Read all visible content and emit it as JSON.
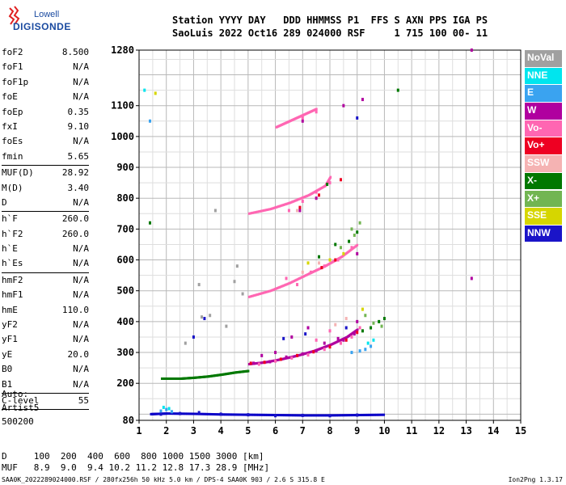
{
  "logo": {
    "line1": "Lowell",
    "line2": "DIGISONDE"
  },
  "header": {
    "line1": "Station YYYY DAY   DDD HHMMSS P1  FFS S AXN PPS IGA PS",
    "line2": "SaoLuis 2022 Oct16 289 024000 RSF     1 715 100 00- 11"
  },
  "params": [
    {
      "name": "foF2",
      "value": "8.500"
    },
    {
      "name": "foF1",
      "value": "N/A"
    },
    {
      "name": "foF1p",
      "value": "N/A"
    },
    {
      "name": "foE",
      "value": "N/A"
    },
    {
      "name": "foEp",
      "value": "0.35"
    },
    {
      "name": "fxI",
      "value": "9.10"
    },
    {
      "name": "foEs",
      "value": "N/A"
    },
    {
      "name": "fmin",
      "value": "5.65",
      "sep": true
    },
    {
      "name": "MUF(D)",
      "value": "28.92"
    },
    {
      "name": "M(D)",
      "value": "3.40"
    },
    {
      "name": "D",
      "value": "N/A",
      "sep": true
    },
    {
      "name": "h`F",
      "value": "260.0"
    },
    {
      "name": "h`F2",
      "value": "260.0"
    },
    {
      "name": "h`E",
      "value": "N/A"
    },
    {
      "name": "h`Es",
      "value": "N/A",
      "sep": true
    },
    {
      "name": "hmF2",
      "value": "N/A"
    },
    {
      "name": "hmF1",
      "value": "N/A"
    },
    {
      "name": "hmE",
      "value": "110.0"
    },
    {
      "name": "yF2",
      "value": "N/A"
    },
    {
      "name": "yF1",
      "value": "N/A"
    },
    {
      "name": "yE",
      "value": "20.0"
    },
    {
      "name": "B0",
      "value": "N/A"
    },
    {
      "name": "B1",
      "value": "N/A",
      "sep": true
    },
    {
      "name": "C-level",
      "value": "55",
      "sep": true
    }
  ],
  "auto": {
    "line1": "Auto:",
    "line2": "Artist5",
    "line3": "500200"
  },
  "legend": [
    {
      "label": "NoVal",
      "color": "#a0a0a0"
    },
    {
      "label": "NNE",
      "color": "#00e5ee"
    },
    {
      "label": "E",
      "color": "#3aa3f0"
    },
    {
      "label": "W",
      "color": "#b0009f"
    },
    {
      "label": "Vo-",
      "color": "#ff66b2"
    },
    {
      "label": "Vo+",
      "color": "#ee0022"
    },
    {
      "label": "SSW",
      "color": "#f5b3b3"
    },
    {
      "label": "X-",
      "color": "#007800"
    },
    {
      "label": "X+",
      "color": "#72b552"
    },
    {
      "label": "SSE",
      "color": "#d6d600"
    },
    {
      "label": "NNW",
      "color": "#1a14c8"
    }
  ],
  "muf_table": {
    "line1": "D     100  200  400  600  800 1000 1500 3000 [km]",
    "line2": "MUF   8.9  9.0  9.4 10.2 11.2 12.8 17.3 28.9 [MHz]"
  },
  "footer": "SAA0K_2022289024000.RSF / 280fx256h 50 kHz 5.0 km / DPS-4 SAA0K 903 / 2.6 S 315.8 E",
  "version": "Ion2Png 1.3.17",
  "chart_data": {
    "type": "scatter",
    "title": "",
    "xlabel": "",
    "ylabel": "",
    "xlim": [
      1,
      15
    ],
    "ylim": [
      80,
      1280
    ],
    "x_ticks": [
      1,
      2,
      3,
      4,
      5,
      6,
      7,
      8,
      9,
      10,
      11,
      12,
      13,
      14,
      15
    ],
    "y_ticks": [
      80,
      200,
      300,
      400,
      500,
      600,
      700,
      800,
      900,
      1000,
      1100,
      1280
    ],
    "grid": true,
    "series": [
      {
        "name": "W",
        "color": "#b0009f",
        "points": [
          [
            5.2,
            265
          ],
          [
            5.8,
            270
          ],
          [
            6.4,
            285
          ],
          [
            7.0,
            295
          ],
          [
            7.5,
            305
          ],
          [
            8.0,
            320
          ],
          [
            8.5,
            340
          ],
          [
            8.9,
            360
          ],
          [
            6.6,
            350
          ],
          [
            7.2,
            380
          ],
          [
            6.0,
            300
          ],
          [
            9.0,
            400
          ],
          [
            7.8,
            330
          ],
          [
            8.3,
            345
          ],
          [
            5.5,
            290
          ],
          [
            6.9,
            760
          ],
          [
            7.5,
            800
          ],
          [
            9.0,
            620
          ],
          [
            7.0,
            1050
          ],
          [
            8.5,
            1100
          ],
          [
            9.2,
            1120
          ],
          [
            13.2,
            540
          ],
          [
            13.2,
            1280
          ]
        ]
      },
      {
        "name": "Vo-",
        "color": "#ff66b2",
        "points": [
          [
            5.4,
            262
          ],
          [
            6.0,
            272
          ],
          [
            6.6,
            282
          ],
          [
            7.2,
            292
          ],
          [
            7.8,
            310
          ],
          [
            8.4,
            330
          ],
          [
            8.8,
            350
          ],
          [
            9.1,
            380
          ],
          [
            7.5,
            340
          ],
          [
            8.0,
            370
          ],
          [
            6.8,
            520
          ],
          [
            7.3,
            560
          ],
          [
            7.8,
            580
          ],
          [
            8.3,
            600
          ],
          [
            8.8,
            640
          ],
          [
            6.5,
            760
          ],
          [
            7.0,
            790
          ],
          [
            7.5,
            820
          ],
          [
            8.0,
            850
          ],
          [
            7.0,
            1060
          ],
          [
            7.5,
            1080
          ],
          [
            6.4,
            540
          ]
        ]
      },
      {
        "name": "Vo+",
        "color": "#ee0022",
        "points": [
          [
            5.6,
            268
          ],
          [
            6.2,
            278
          ],
          [
            6.8,
            290
          ],
          [
            7.4,
            302
          ],
          [
            8.0,
            318
          ],
          [
            8.6,
            340
          ],
          [
            9.0,
            365
          ],
          [
            7.7,
            575
          ],
          [
            8.2,
            600
          ],
          [
            6.9,
            770
          ],
          [
            7.6,
            810
          ],
          [
            8.4,
            860
          ],
          [
            5.1,
            265
          ]
        ]
      },
      {
        "name": "E",
        "color": "#3aa3f0",
        "points": [
          [
            1.8,
            110
          ],
          [
            2.0,
            115
          ],
          [
            2.2,
            108
          ],
          [
            9.3,
            310
          ],
          [
            9.5,
            320
          ],
          [
            8.8,
            300
          ],
          [
            9.1,
            305
          ],
          [
            1.4,
            1050
          ]
        ]
      },
      {
        "name": "NNE",
        "color": "#00e5ee",
        "points": [
          [
            1.9,
            122
          ],
          [
            2.1,
            118
          ],
          [
            9.4,
            330
          ],
          [
            9.6,
            340
          ],
          [
            1.2,
            1150
          ]
        ]
      },
      {
        "name": "X-",
        "color": "#007800",
        "points": [
          [
            9.5,
            380
          ],
          [
            9.8,
            400
          ],
          [
            10.0,
            410
          ],
          [
            9.2,
            370
          ],
          [
            9.0,
            690
          ],
          [
            8.7,
            660
          ],
          [
            7.6,
            610
          ],
          [
            8.2,
            650
          ],
          [
            7.9,
            845
          ],
          [
            10.5,
            1150
          ],
          [
            1.4,
            720
          ]
        ]
      },
      {
        "name": "X+",
        "color": "#72b552",
        "points": [
          [
            9.6,
            395
          ],
          [
            9.9,
            385
          ],
          [
            9.3,
            420
          ],
          [
            8.9,
            680
          ],
          [
            9.1,
            720
          ],
          [
            8.4,
            640
          ],
          [
            8.8,
            700
          ]
        ]
      },
      {
        "name": "SSE",
        "color": "#d6d600",
        "points": [
          [
            8.0,
            600
          ],
          [
            8.5,
            620
          ],
          [
            7.2,
            590
          ],
          [
            9.2,
            440
          ],
          [
            1.6,
            1140
          ]
        ]
      },
      {
        "name": "SSW",
        "color": "#f5b3b3",
        "points": [
          [
            7.0,
            560
          ],
          [
            7.6,
            590
          ],
          [
            6.8,
            760
          ],
          [
            8.2,
            390
          ],
          [
            8.6,
            410
          ]
        ]
      },
      {
        "name": "NNW",
        "color": "#1a14c8",
        "points": [
          [
            1.8,
            100
          ],
          [
            2.5,
            102
          ],
          [
            3.2,
            105
          ],
          [
            4.0,
            100
          ],
          [
            5.0,
            98
          ],
          [
            6.0,
            95
          ],
          [
            7.0,
            96
          ],
          [
            8.0,
            95
          ],
          [
            9.0,
            97
          ],
          [
            6.3,
            345
          ],
          [
            7.1,
            360
          ],
          [
            8.6,
            380
          ],
          [
            9.0,
            1060
          ],
          [
            3.0,
            350
          ],
          [
            3.4,
            410
          ]
        ]
      },
      {
        "name": "NoVal",
        "color": "#a0a0a0",
        "points": [
          [
            3.2,
            520
          ],
          [
            4.5,
            530
          ],
          [
            4.8,
            490
          ],
          [
            3.3,
            415
          ],
          [
            3.6,
            420
          ],
          [
            4.2,
            385
          ],
          [
            2.7,
            330
          ],
          [
            3.8,
            760
          ],
          [
            4.6,
            580
          ]
        ]
      }
    ],
    "traces": [
      {
        "name": "Es",
        "color": "#0a00c8",
        "x": [
          1.4,
          2.0,
          3.0,
          4.0,
          5.0,
          6.0,
          7.0,
          8.0,
          9.0,
          10.0
        ],
        "y": [
          100,
          102,
          101,
          99,
          98,
          97,
          96,
          96,
          97,
          98
        ]
      },
      {
        "name": "F low",
        "color": "#007800",
        "x": [
          1.8,
          2.5,
          3.0,
          3.5,
          4.0,
          4.5,
          5.0
        ],
        "y": [
          215,
          215,
          218,
          222,
          228,
          235,
          240
        ]
      },
      {
        "name": "F2 O",
        "color": "#b0009f",
        "x": [
          5.0,
          5.6,
          6.2,
          6.8,
          7.4,
          8.0,
          8.6,
          9.0
        ],
        "y": [
          262,
          268,
          278,
          290,
          305,
          325,
          350,
          375
        ]
      },
      {
        "name": "F2 2nd hop",
        "color": "#ff66b2",
        "x": [
          5.0,
          5.8,
          6.5,
          7.2,
          7.8,
          8.4,
          9.0
        ],
        "y": [
          480,
          500,
          525,
          555,
          580,
          610,
          650
        ]
      },
      {
        "name": "F2 3rd hop",
        "color": "#ff66b2",
        "x": [
          5.0,
          5.8,
          6.5,
          7.2,
          7.8,
          8.0
        ],
        "y": [
          750,
          765,
          785,
          810,
          840,
          870
        ]
      },
      {
        "name": "F2 4th hop",
        "color": "#ff66b2",
        "x": [
          6.0,
          6.5,
          7.0,
          7.5
        ],
        "y": [
          1030,
          1050,
          1070,
          1090
        ]
      }
    ]
  }
}
